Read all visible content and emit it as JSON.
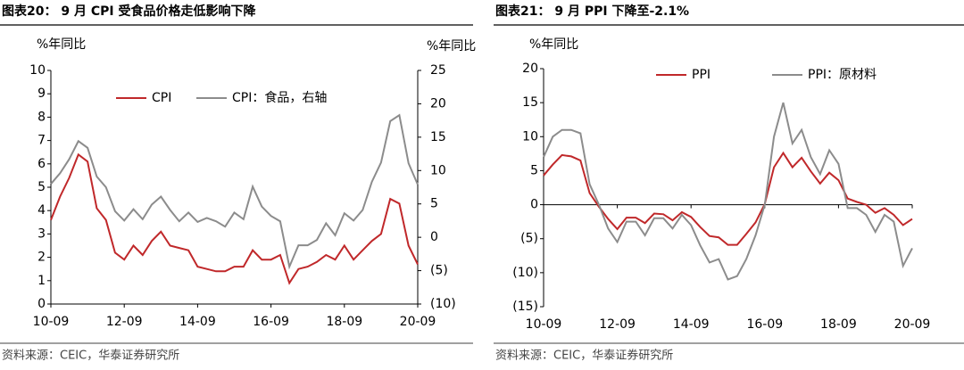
{
  "chart_data": [
    {
      "type": "line",
      "title": "图表20： 9 月 CPI 受食品价格走低影响下降",
      "y_label": "%年同比",
      "y2_label": "%年同比",
      "note": "资料来源：CEIC，华泰证券研究所",
      "categories": [
        "10-09",
        null,
        null,
        null,
        null,
        null,
        null,
        null,
        "12-09",
        null,
        null,
        null,
        null,
        null,
        null,
        null,
        "14-09",
        null,
        null,
        null,
        null,
        null,
        null,
        null,
        "16-09",
        null,
        null,
        null,
        null,
        null,
        null,
        null,
        "18-09",
        null,
        null,
        null,
        null,
        null,
        null,
        null,
        "20-09"
      ],
      "ylim": [
        0,
        10
      ],
      "yticks": [
        0,
        1,
        2,
        3,
        4,
        5,
        6,
        7,
        8,
        9,
        10
      ],
      "y2lim": [
        -10,
        25
      ],
      "y2ticks": [
        {
          "value": -10,
          "label": "(10)"
        },
        {
          "value": -5,
          "label": "(5)"
        },
        0,
        5,
        10,
        15,
        20,
        25
      ],
      "series": [
        {
          "name": "CPI",
          "color": "#c0282a",
          "values": [
            3.6,
            4.6,
            5.4,
            6.4,
            6.1,
            4.1,
            3.6,
            2.2,
            1.9,
            2.5,
            2.1,
            2.7,
            3.1,
            2.5,
            2.4,
            2.3,
            1.6,
            1.5,
            1.4,
            1.4,
            1.6,
            1.6,
            2.3,
            1.9,
            1.9,
            2.1,
            0.9,
            1.5,
            1.6,
            1.8,
            2.1,
            1.9,
            2.5,
            1.9,
            2.3,
            2.7,
            3.0,
            4.5,
            4.3,
            2.5,
            1.7
          ]
        },
        {
          "name": "CPI：食品，右轴",
          "color": "#8c8c8c",
          "axis": "y2",
          "values": [
            8.0,
            9.6,
            11.7,
            14.4,
            13.4,
            9.1,
            7.5,
            3.9,
            2.5,
            4.2,
            2.7,
            4.9,
            6.1,
            4.1,
            2.4,
            3.7,
            2.3,
            2.9,
            2.4,
            1.6,
            3.7,
            2.7,
            7.6,
            4.6,
            3.2,
            2.4,
            -4.4,
            -1.2,
            -1.2,
            -0.4,
            2.1,
            0.3,
            3.6,
            2.5,
            4.1,
            8.3,
            11.2,
            17.4,
            18.3,
            11.1,
            7.9
          ]
        }
      ]
    },
    {
      "type": "line",
      "title": "图表21： 9 月 PPI 下降至-2.1%",
      "y_label": "%年同比",
      "note": "资料来源：CEIC，华泰证券研究所",
      "categories": [
        "10-09",
        null,
        null,
        null,
        null,
        null,
        null,
        null,
        "12-09",
        null,
        null,
        null,
        null,
        null,
        null,
        null,
        "14-09",
        null,
        null,
        null,
        null,
        null,
        null,
        null,
        "16-09",
        null,
        null,
        null,
        null,
        null,
        null,
        null,
        "18-09",
        null,
        null,
        null,
        null,
        null,
        null,
        null,
        "20-09"
      ],
      "ylim": [
        -15,
        20
      ],
      "yticks": [
        {
          "value": -15,
          "label": "(15)"
        },
        {
          "value": -10,
          "label": "(10)"
        },
        {
          "value": -5,
          "label": "(5)"
        },
        0,
        5,
        10,
        15,
        20
      ],
      "series": [
        {
          "name": "PPI",
          "color": "#c0282a",
          "values": [
            4.3,
            5.9,
            7.3,
            7.1,
            6.5,
            1.7,
            -0.3,
            -2.1,
            -3.6,
            -1.9,
            -1.9,
            -2.7,
            -1.3,
            -1.4,
            -2.3,
            -1.1,
            -1.8,
            -3.3,
            -4.6,
            -4.8,
            -5.9,
            -5.9,
            -4.3,
            -2.6,
            0.1,
            5.5,
            7.6,
            5.5,
            6.9,
            4.9,
            3.1,
            4.7,
            3.6,
            0.9,
            0.4,
            0.0,
            -1.2,
            -0.5,
            -1.5,
            -3.0,
            -2.1
          ]
        },
        {
          "name": "PPI：原材料",
          "color": "#8c8c8c",
          "values": [
            7,
            10,
            11,
            11,
            10.5,
            3,
            0,
            -3.5,
            -5.5,
            -2.5,
            -2.5,
            -4.5,
            -2,
            -2,
            -3.5,
            -1.5,
            -3,
            -6,
            -8.5,
            -8,
            -11,
            -10.5,
            -8,
            -4.5,
            0,
            10,
            15,
            9,
            11,
            7,
            4.5,
            8,
            6,
            -0.5,
            -0.5,
            -1.5,
            -4,
            -1.5,
            -2.5,
            -9,
            -6.4
          ]
        }
      ]
    }
  ]
}
